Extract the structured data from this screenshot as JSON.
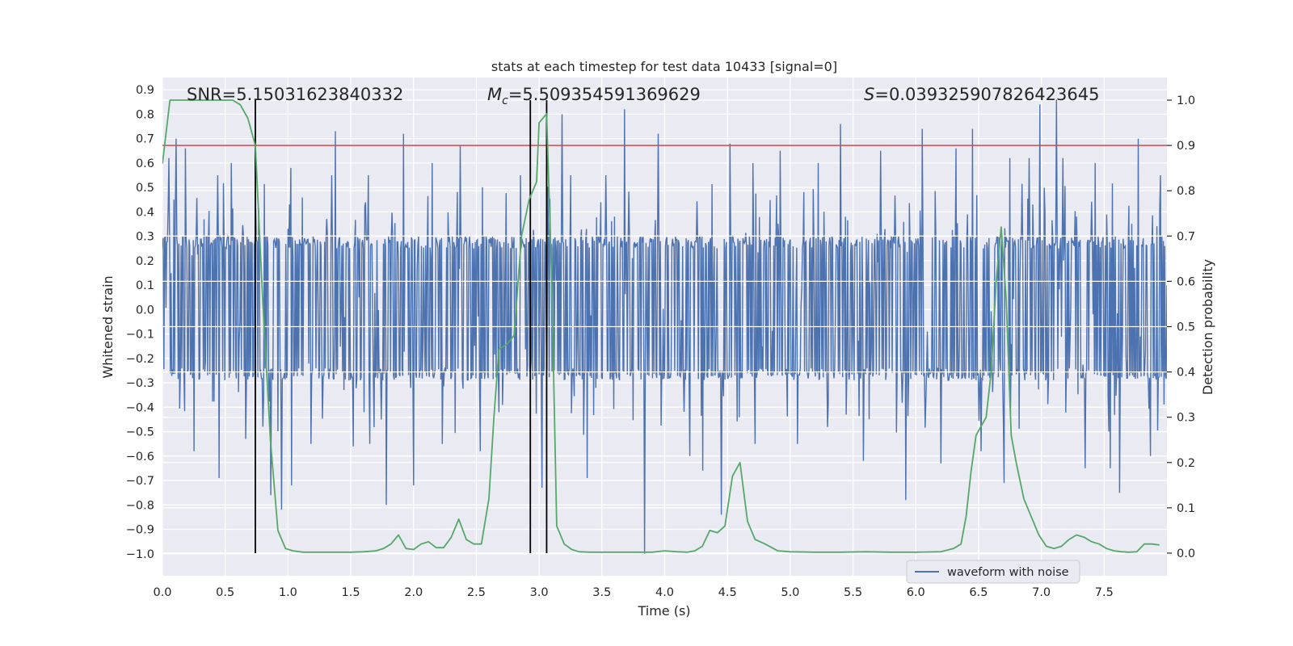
{
  "chart_data": {
    "type": "line",
    "title": "stats at each timestep for test data 10433 [signal=0]",
    "xlabel": "Time (s)",
    "ylabel": "Whitened strain",
    "y2label": "Detection probability",
    "xlim": [
      0.0,
      8.0
    ],
    "ylim": [
      -1.09,
      0.95
    ],
    "y2lim": [
      -0.05,
      1.05
    ],
    "xticks": [
      0.0,
      0.5,
      1.0,
      1.5,
      2.0,
      2.5,
      3.0,
      3.5,
      4.0,
      4.5,
      5.0,
      5.5,
      6.0,
      6.5,
      7.0,
      7.5
    ],
    "xtick_labels": [
      "0.0",
      "0.5",
      "1.0",
      "1.5",
      "2.0",
      "2.5",
      "3.0",
      "3.5",
      "4.0",
      "4.5",
      "5.0",
      "5.5",
      "6.0",
      "6.5",
      "7.0",
      "7.5"
    ],
    "yticks": [
      -1.0,
      -0.9,
      -0.8,
      -0.7,
      -0.6,
      -0.5,
      -0.4,
      -0.3,
      -0.2,
      -0.1,
      0.0,
      0.1,
      0.2,
      0.3,
      0.4,
      0.5,
      0.6,
      0.7,
      0.8,
      0.9
    ],
    "ytick_labels": [
      "−1.0",
      "−0.9",
      "−0.8",
      "−0.7",
      "−0.6",
      "−0.5",
      "−0.4",
      "−0.3",
      "−0.2",
      "−0.1",
      "0.0",
      "0.1",
      "0.2",
      "0.3",
      "0.4",
      "0.5",
      "0.6",
      "0.7",
      "0.8",
      "0.9"
    ],
    "y2ticks": [
      0.0,
      0.1,
      0.2,
      0.3,
      0.4,
      0.5,
      0.6,
      0.7,
      0.8,
      0.9,
      1.0
    ],
    "y2tick_labels": [
      "0.0",
      "0.1",
      "0.2",
      "0.3",
      "0.4",
      "0.5",
      "0.6",
      "0.7",
      "0.8",
      "0.9",
      "1.0"
    ],
    "grid": true,
    "legend": {
      "location": "lower-right",
      "entries": [
        "waveform with noise"
      ]
    },
    "annotations": {
      "snr_label": "SNR=5.15031623840332",
      "mc_symbol": "M",
      "mc_subscript": "c",
      "mc_value": "=5.509354591369629",
      "s_symbol": "S",
      "s_value": "=0.039325907826423645"
    },
    "threshold": {
      "axis": "y2",
      "value": 0.9,
      "color": "#c44e52"
    },
    "vlines": [
      0.74,
      2.93,
      3.06
    ],
    "waveform": {
      "name": "waveform with noise",
      "color": "#4c72b0",
      "x_range": [
        0.0,
        8.0
      ],
      "core_band": [
        -0.29,
        0.3
      ],
      "samples": 1400,
      "spikes": [
        {
          "x": 0.05,
          "y": 0.62
        },
        {
          "x": 0.11,
          "y": 0.7
        },
        {
          "x": 0.18,
          "y": 0.66
        },
        {
          "x": 0.25,
          "y": -0.58
        },
        {
          "x": 0.44,
          "y": 0.55
        },
        {
          "x": 0.45,
          "y": -0.69
        },
        {
          "x": 0.55,
          "y": 0.6
        },
        {
          "x": 0.66,
          "y": -0.53
        },
        {
          "x": 0.8,
          "y": -0.48
        },
        {
          "x": 0.86,
          "y": -0.76
        },
        {
          "x": 0.95,
          "y": -0.82
        },
        {
          "x": 1.02,
          "y": 0.58
        },
        {
          "x": 1.03,
          "y": -0.72
        },
        {
          "x": 1.18,
          "y": -0.55
        },
        {
          "x": 1.35,
          "y": 0.55
        },
        {
          "x": 1.38,
          "y": 0.73
        },
        {
          "x": 1.52,
          "y": -0.56
        },
        {
          "x": 1.64,
          "y": 0.55
        },
        {
          "x": 1.65,
          "y": -0.55
        },
        {
          "x": 1.78,
          "y": -0.8
        },
        {
          "x": 1.92,
          "y": 0.72
        },
        {
          "x": 2.0,
          "y": -0.72
        },
        {
          "x": 2.15,
          "y": 0.6
        },
        {
          "x": 2.23,
          "y": -0.55
        },
        {
          "x": 2.37,
          "y": 0.67
        },
        {
          "x": 2.53,
          "y": -0.58
        },
        {
          "x": 2.85,
          "y": 0.55
        },
        {
          "x": 3.02,
          "y": -0.73
        },
        {
          "x": 3.18,
          "y": 0.8
        },
        {
          "x": 3.25,
          "y": 0.55
        },
        {
          "x": 3.38,
          "y": -0.69
        },
        {
          "x": 3.53,
          "y": 0.55
        },
        {
          "x": 3.68,
          "y": 0.82
        },
        {
          "x": 3.84,
          "y": -1.0
        },
        {
          "x": 3.95,
          "y": 0.72
        },
        {
          "x": 4.2,
          "y": -0.6
        },
        {
          "x": 4.3,
          "y": -0.66
        },
        {
          "x": 4.45,
          "y": -0.84
        },
        {
          "x": 4.52,
          "y": 0.68
        },
        {
          "x": 4.7,
          "y": 0.6
        },
        {
          "x": 4.72,
          "y": -0.55
        },
        {
          "x": 4.92,
          "y": 0.65
        },
        {
          "x": 5.06,
          "y": -0.55
        },
        {
          "x": 5.22,
          "y": 0.6
        },
        {
          "x": 5.4,
          "y": 0.76
        },
        {
          "x": 5.58,
          "y": -0.62
        },
        {
          "x": 5.72,
          "y": 0.65
        },
        {
          "x": 5.92,
          "y": -0.78
        },
        {
          "x": 6.05,
          "y": 0.74
        },
        {
          "x": 6.2,
          "y": -0.63
        },
        {
          "x": 6.32,
          "y": 0.66
        },
        {
          "x": 6.45,
          "y": 0.74
        },
        {
          "x": 6.52,
          "y": -0.58
        },
        {
          "x": 6.7,
          "y": -0.71
        },
        {
          "x": 6.75,
          "y": 0.62
        },
        {
          "x": 6.9,
          "y": 0.62
        },
        {
          "x": 6.99,
          "y": 0.84
        },
        {
          "x": 7.12,
          "y": 0.86
        },
        {
          "x": 7.17,
          "y": 0.62
        },
        {
          "x": 7.35,
          "y": -0.65
        },
        {
          "x": 7.43,
          "y": 0.6
        },
        {
          "x": 7.55,
          "y": -0.65
        },
        {
          "x": 7.62,
          "y": -0.75
        },
        {
          "x": 7.77,
          "y": 0.7
        },
        {
          "x": 7.87,
          "y": -0.6
        },
        {
          "x": 7.95,
          "y": 0.55
        }
      ]
    },
    "probability": {
      "name": "detection probability",
      "color": "#55a868",
      "x": [
        0.0,
        0.06,
        0.12,
        0.2,
        0.3,
        0.4,
        0.5,
        0.56,
        0.62,
        0.68,
        0.74,
        0.8,
        0.86,
        0.92,
        0.98,
        1.04,
        1.12,
        1.2,
        1.3,
        1.4,
        1.5,
        1.6,
        1.7,
        1.76,
        1.82,
        1.88,
        1.94,
        2.0,
        2.06,
        2.12,
        2.18,
        2.24,
        2.3,
        2.36,
        2.42,
        2.48,
        2.54,
        2.6,
        2.64,
        2.68,
        2.74,
        2.8,
        2.86,
        2.92,
        2.98,
        3.0,
        3.06,
        3.1,
        3.14,
        3.2,
        3.26,
        3.32,
        3.4,
        3.5,
        3.6,
        3.7,
        3.8,
        3.9,
        4.0,
        4.1,
        4.18,
        4.24,
        4.3,
        4.36,
        4.42,
        4.48,
        4.54,
        4.6,
        4.66,
        4.72,
        4.8,
        4.9,
        5.0,
        5.2,
        5.4,
        5.6,
        5.8,
        6.0,
        6.2,
        6.3,
        6.36,
        6.4,
        6.44,
        6.48,
        6.52,
        6.56,
        6.6,
        6.64,
        6.68,
        6.72,
        6.76,
        6.8,
        6.86,
        6.92,
        6.98,
        7.04,
        7.1,
        7.16,
        7.22,
        7.28,
        7.34,
        7.4,
        7.46,
        7.52,
        7.58,
        7.64,
        7.7,
        7.76,
        7.82,
        7.88,
        7.94
      ],
      "y": [
        0.86,
        1.0,
        1.0,
        1.0,
        1.0,
        1.0,
        1.0,
        1.0,
        0.99,
        0.96,
        0.9,
        0.55,
        0.25,
        0.05,
        0.01,
        0.005,
        0.002,
        0.002,
        0.002,
        0.002,
        0.002,
        0.003,
        0.005,
        0.01,
        0.02,
        0.04,
        0.01,
        0.008,
        0.02,
        0.025,
        0.012,
        0.012,
        0.035,
        0.075,
        0.03,
        0.02,
        0.02,
        0.12,
        0.3,
        0.45,
        0.46,
        0.48,
        0.7,
        0.78,
        0.82,
        0.95,
        0.97,
        0.6,
        0.06,
        0.02,
        0.008,
        0.003,
        0.002,
        0.002,
        0.002,
        0.002,
        0.002,
        0.002,
        0.005,
        0.003,
        0.002,
        0.005,
        0.015,
        0.05,
        0.045,
        0.06,
        0.17,
        0.2,
        0.07,
        0.03,
        0.02,
        0.005,
        0.003,
        0.002,
        0.002,
        0.003,
        0.002,
        0.002,
        0.003,
        0.01,
        0.02,
        0.08,
        0.18,
        0.26,
        0.28,
        0.3,
        0.4,
        0.6,
        0.72,
        0.56,
        0.26,
        0.2,
        0.12,
        0.08,
        0.04,
        0.015,
        0.01,
        0.015,
        0.03,
        0.04,
        0.035,
        0.025,
        0.02,
        0.01,
        0.005,
        0.003,
        0.002,
        0.003,
        0.02,
        0.02,
        0.018
      ]
    }
  }
}
